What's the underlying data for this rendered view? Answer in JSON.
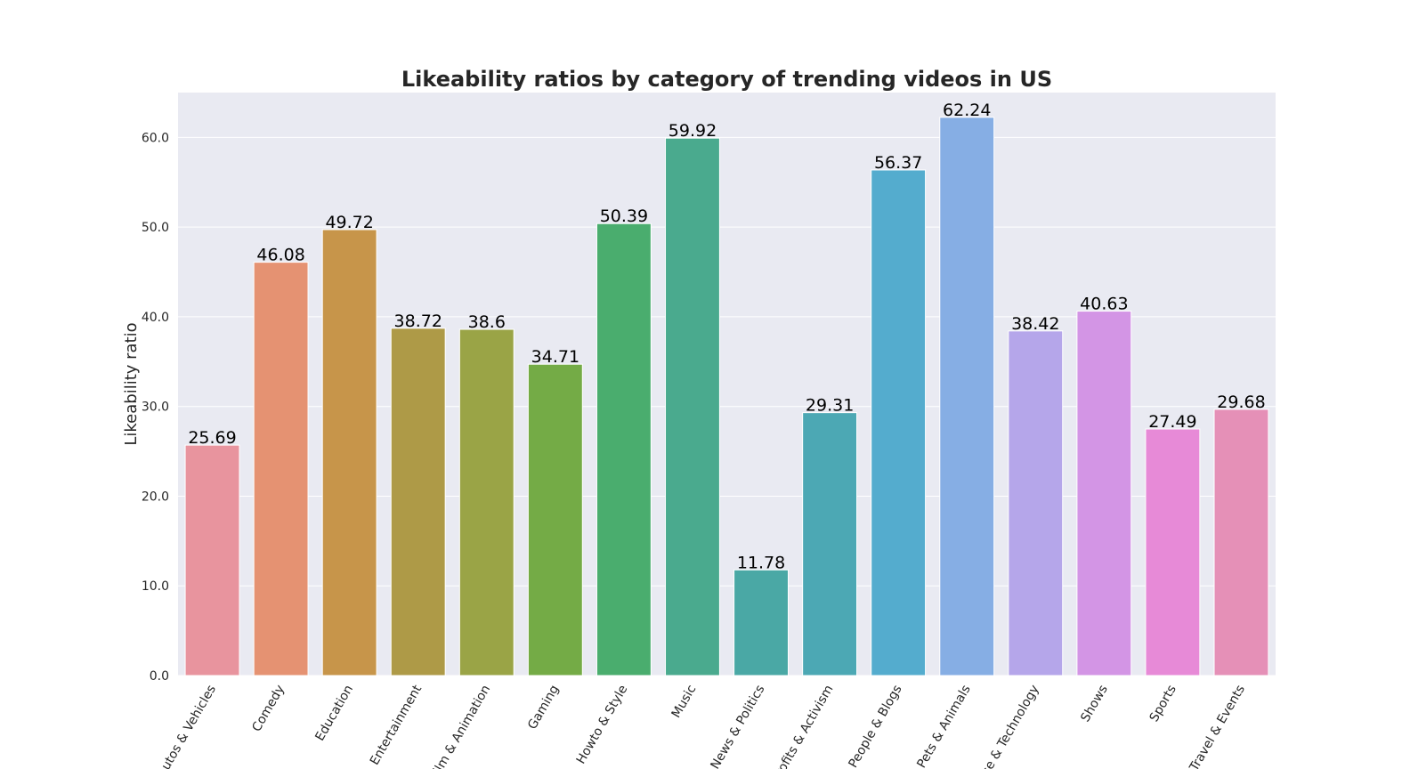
{
  "chart_data": {
    "type": "bar",
    "title": "Likeability ratios by category of trending videos in US",
    "xlabel": "",
    "ylabel": "Likeability ratio",
    "ylim": [
      0,
      65
    ],
    "yticks": [
      "0.0",
      "10.0",
      "20.0",
      "30.0",
      "40.0",
      "50.0",
      "60.0"
    ],
    "grid": true,
    "categories": [
      "Autos & Vehicles",
      "Comedy",
      "Education",
      "Entertainment",
      "Film & Animation",
      "Gaming",
      "Howto & Style",
      "Music",
      "News & Politics",
      "Nonprofits & Activism",
      "People & Blogs",
      "Pets & Animals",
      "Science & Technology",
      "Shows",
      "Sports",
      "Travel & Events"
    ],
    "values": [
      25.69,
      46.08,
      49.72,
      38.72,
      38.6,
      34.71,
      50.39,
      59.92,
      11.78,
      29.31,
      56.37,
      62.24,
      38.42,
      40.63,
      27.49,
      29.68
    ],
    "value_labels": [
      "25.69",
      "46.08",
      "49.72",
      "38.72",
      "38.6",
      "34.71",
      "50.39",
      "59.92",
      "11.78",
      "29.31",
      "56.37",
      "62.24",
      "38.42",
      "40.63",
      "27.49",
      "29.68"
    ],
    "colors": [
      "#e8949e",
      "#e59272",
      "#c7954a",
      "#ae9a47",
      "#9aa446",
      "#74ab46",
      "#4aad6e",
      "#4aaa8e",
      "#4aa8a5",
      "#4ca8b4",
      "#54acce",
      "#86aee4",
      "#b5a6ea",
      "#d395e5",
      "#e78ad7",
      "#e590b7"
    ],
    "plot_background": "#e9eaf2",
    "grid_color": "#ffffff"
  }
}
